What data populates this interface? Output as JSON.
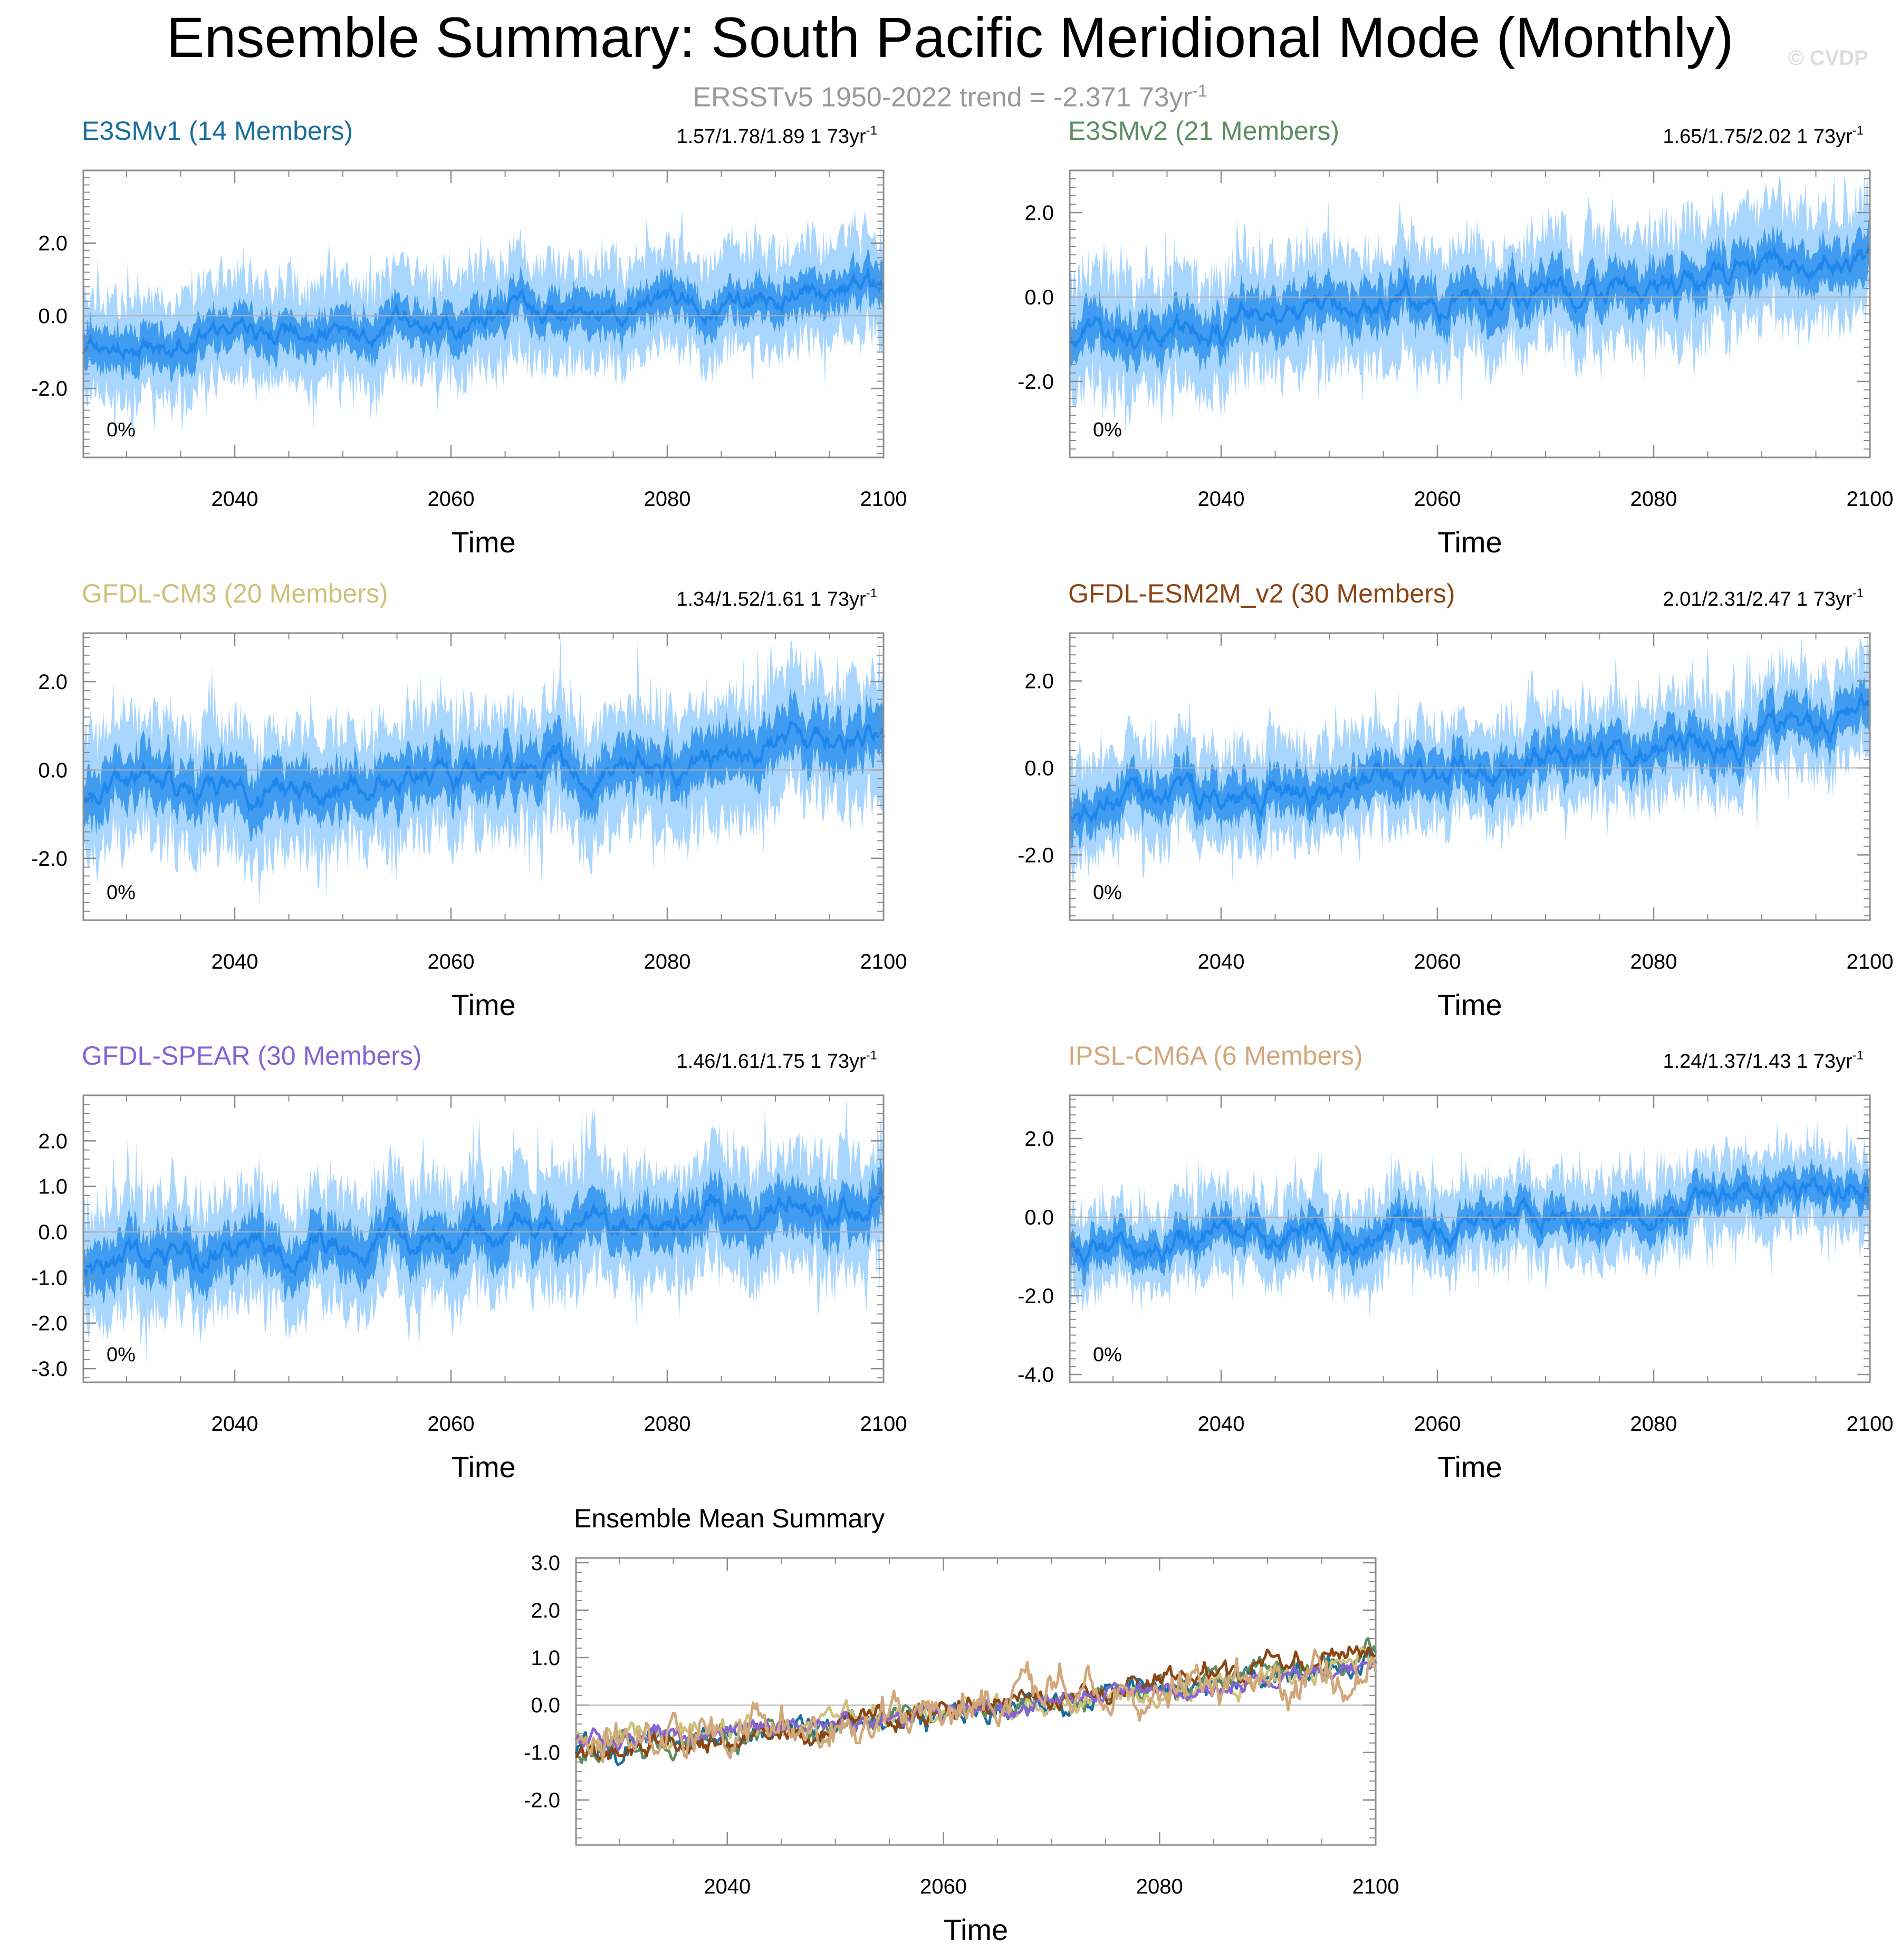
{
  "figure": {
    "title": "Ensemble Summary: South Pacific Meridional Mode (Monthly)",
    "subtitle": "ERSSTv5 1950-2022 trend = -2.371 73yr",
    "subtitle_sup": "-1",
    "watermark": "© CVDP"
  },
  "colors": {
    "spread_outer": "#a9d6ff",
    "spread_inner": "#3f9cf0",
    "mean_line": "#1f86ec",
    "axis": "#8c8c8c",
    "zero_line": "#b0b0b0"
  },
  "chart_data": [
    {
      "type": "area",
      "name": "E3SMv1",
      "title": "E3SMv1 (14 Members)",
      "title_color": "#1a6e9b",
      "trend_text": "1.57/1.78/1.89 1 73yr",
      "trend_sup": "-1",
      "percent_label": "0%",
      "xlabel": "Time",
      "ylabel": "",
      "xlim": [
        2026,
        2100
      ],
      "ylim": [
        -3.9,
        4.0
      ],
      "xticks": [
        2040,
        2060,
        2080,
        2100
      ],
      "yticks": [
        2.0,
        0.0,
        -2.0
      ],
      "ytick_labels": [
        "2.0",
        "0.0",
        "-2.0"
      ],
      "x": [
        2026,
        2035,
        2045,
        2055,
        2065,
        2075,
        2085,
        2095,
        2100
      ],
      "mean": [
        -0.95,
        -0.65,
        -0.5,
        -0.3,
        -0.05,
        0.15,
        0.45,
        0.7,
        0.85
      ],
      "inner_halfwidth": 0.55,
      "outer_halfwidth": 1.5,
      "seed": 11
    },
    {
      "type": "area",
      "name": "E3SMv2",
      "title": "E3SMv2 (21 Members)",
      "title_color": "#5c8d62",
      "trend_text": "1.65/1.75/2.02 1 73yr",
      "trend_sup": "-1",
      "percent_label": "0%",
      "xlabel": "Time",
      "ylabel": "",
      "xlim": [
        2026,
        2100
      ],
      "ylim": [
        -3.8,
        3.0
      ],
      "xticks": [
        2040,
        2060,
        2080,
        2100
      ],
      "yticks": [
        2.0,
        0.0,
        -2.0
      ],
      "ytick_labels": [
        "2.0",
        "0.0",
        "-2.0"
      ],
      "x": [
        2026,
        2035,
        2045,
        2055,
        2065,
        2075,
        2085,
        2095,
        2100
      ],
      "mean": [
        -1.0,
        -0.75,
        -0.55,
        -0.25,
        0.0,
        0.25,
        0.5,
        0.8,
        1.0
      ],
      "inner_halfwidth": 0.55,
      "outer_halfwidth": 1.45,
      "seed": 23
    },
    {
      "type": "area",
      "name": "GFDL-CM3",
      "title": "GFDL-CM3 (20 Members)",
      "title_color": "#cfc07a",
      "trend_text": "1.34/1.52/1.61 1 73yr",
      "trend_sup": "-1",
      "percent_label": "0%",
      "xlabel": "Time",
      "ylabel": "",
      "xlim": [
        2026,
        2100
      ],
      "ylim": [
        -3.4,
        3.1
      ],
      "xticks": [
        2040,
        2060,
        2080,
        2100
      ],
      "yticks": [
        2.0,
        0.0,
        -2.0
      ],
      "ytick_labels": [
        "2.0",
        "0.0",
        "-2.0"
      ],
      "x": [
        2026,
        2035,
        2045,
        2055,
        2065,
        2075,
        2085,
        2095,
        2100
      ],
      "mean": [
        -0.6,
        -0.55,
        -0.45,
        -0.3,
        -0.05,
        0.15,
        0.35,
        0.65,
        0.9
      ],
      "inner_halfwidth": 0.6,
      "outer_halfwidth": 1.5,
      "seed": 37
    },
    {
      "type": "area",
      "name": "GFDL-ESM2M_v2",
      "title": "GFDL-ESM2M_v2 (30 Members)",
      "title_color": "#8b4513",
      "trend_text": "2.01/2.31/2.47 1 73yr",
      "trend_sup": "-1",
      "percent_label": "0%",
      "xlabel": "Time",
      "ylabel": "",
      "xlim": [
        2026,
        2100
      ],
      "ylim": [
        -3.5,
        3.1
      ],
      "xticks": [
        2040,
        2060,
        2080,
        2100
      ],
      "yticks": [
        2.0,
        0.0,
        -2.0
      ],
      "ytick_labels": [
        "2.0",
        "0.0",
        "-2.0"
      ],
      "x": [
        2026,
        2035,
        2045,
        2055,
        2065,
        2075,
        2085,
        2095,
        2100
      ],
      "mean": [
        -1.0,
        -0.9,
        -0.65,
        -0.4,
        -0.1,
        0.3,
        0.6,
        1.0,
        1.25
      ],
      "inner_halfwidth": 0.5,
      "outer_halfwidth": 1.2,
      "seed": 41
    },
    {
      "type": "area",
      "name": "GFDL-SPEAR",
      "title": "GFDL-SPEAR (30 Members)",
      "title_color": "#8562d6",
      "trend_text": "1.46/1.61/1.75 1 73yr",
      "trend_sup": "-1",
      "percent_label": "0%",
      "xlabel": "Time",
      "ylabel": "",
      "xlim": [
        2026,
        2100
      ],
      "ylim": [
        -3.3,
        3.0
      ],
      "xticks": [
        2040,
        2060,
        2080,
        2100
      ],
      "yticks": [
        2.0,
        1.0,
        0.0,
        -1.0,
        -2.0,
        -3.0
      ],
      "ytick_labels": [
        "2.0",
        "1.0",
        "0.0",
        "-1.0",
        "-2.0",
        "-3.0"
      ],
      "x": [
        2026,
        2035,
        2045,
        2055,
        2065,
        2075,
        2085,
        2095,
        2100
      ],
      "mean": [
        -0.75,
        -0.6,
        -0.5,
        -0.3,
        -0.1,
        0.15,
        0.4,
        0.65,
        0.85
      ],
      "inner_halfwidth": 0.55,
      "outer_halfwidth": 1.35,
      "seed": 53
    },
    {
      "type": "area",
      "name": "IPSL-CM6A",
      "title": "IPSL-CM6A (6 Members)",
      "title_color": "#d2a77a",
      "trend_text": "1.24/1.37/1.43 1 73yr",
      "trend_sup": "-1",
      "percent_label": "0%",
      "xlabel": "Time",
      "ylabel": "",
      "xlim": [
        2026,
        2100
      ],
      "ylim": [
        -4.2,
        3.1
      ],
      "xticks": [
        2040,
        2060,
        2080,
        2100
      ],
      "yticks": [
        2.0,
        0.0,
        -2.0,
        -4.0
      ],
      "ytick_labels": [
        "2.0",
        "0.0",
        "-2.0",
        "-4.0"
      ],
      "x": [
        2026,
        2035,
        2045,
        2055,
        2065,
        2075,
        2085,
        2095,
        2100
      ],
      "mean": [
        -0.75,
        -0.6,
        -0.45,
        -0.3,
        -0.1,
        0.05,
        0.25,
        0.5,
        0.75
      ],
      "inner_halfwidth": 0.45,
      "outer_halfwidth": 1.1,
      "seed": 67
    },
    {
      "type": "line",
      "name": "ensemble-mean",
      "title": "Ensemble Mean Summary",
      "xlabel": "Time",
      "ylabel": "",
      "xlim": [
        2026,
        2100
      ],
      "ylim": [
        -2.95,
        3.1
      ],
      "xticks": [
        2040,
        2060,
        2080,
        2100
      ],
      "yticks": [
        3.0,
        2.0,
        1.0,
        0.0,
        -1.0,
        -2.0
      ],
      "ytick_labels": [
        "3.0",
        "2.0",
        "1.0",
        "0.0",
        "-1.0",
        "-2.0"
      ],
      "series": [
        {
          "name": "E3SMv1",
          "color": "#1a6e9b",
          "x": [
            2026,
            2040,
            2060,
            2080,
            2100
          ],
          "values": [
            -0.95,
            -0.6,
            -0.15,
            0.35,
            0.9
          ],
          "noise": 0.32,
          "seed": 101
        },
        {
          "name": "E3SMv2",
          "color": "#5c8d62",
          "x": [
            2026,
            2040,
            2060,
            2080,
            2100
          ],
          "values": [
            -1.0,
            -0.65,
            -0.15,
            0.35,
            1.0
          ],
          "noise": 0.3,
          "seed": 113
        },
        {
          "name": "GFDL-CM3",
          "color": "#cfc07a",
          "x": [
            2026,
            2040,
            2060,
            2080,
            2100
          ],
          "values": [
            -0.6,
            -0.5,
            -0.2,
            0.25,
            0.85
          ],
          "noise": 0.3,
          "seed": 127
        },
        {
          "name": "GFDL-ESM2M_v2",
          "color": "#8b4513",
          "x": [
            2026,
            2040,
            2060,
            2080,
            2100
          ],
          "values": [
            -1.0,
            -0.8,
            -0.1,
            0.5,
            1.25
          ],
          "noise": 0.28,
          "seed": 131
        },
        {
          "name": "GFDL-SPEAR",
          "color": "#8562d6",
          "x": [
            2026,
            2040,
            2060,
            2080,
            2100
          ],
          "values": [
            -0.75,
            -0.55,
            -0.15,
            0.3,
            0.8
          ],
          "noise": 0.22,
          "seed": 139
        },
        {
          "name": "IPSL-CM6A",
          "color": "#d2a77a",
          "x": [
            2026,
            2040,
            2060,
            2080,
            2100
          ],
          "values": [
            -0.75,
            -0.5,
            -0.2,
            0.25,
            0.75
          ],
          "noise": 0.55,
          "seed": 149
        }
      ]
    }
  ]
}
